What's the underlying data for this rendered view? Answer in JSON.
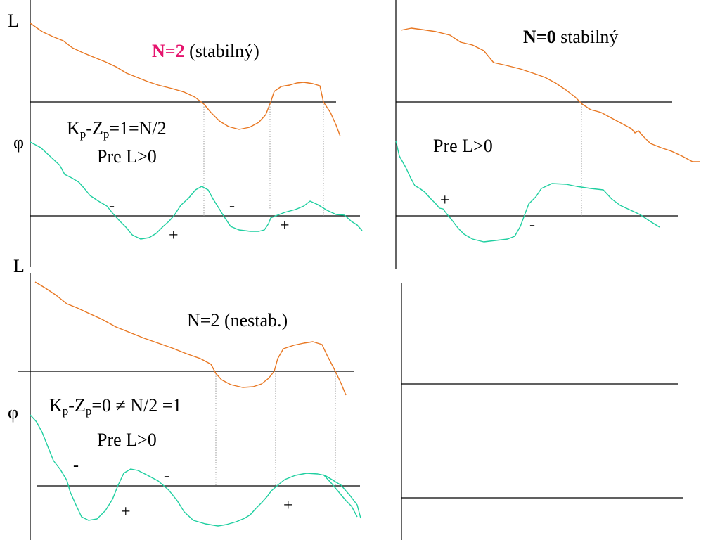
{
  "colors": {
    "magnitude": "#e87722",
    "phase": "#1fcfa0",
    "axis": "#000000",
    "highlight": "#e6146e"
  },
  "axis_labels": {
    "magnitude": "L",
    "phase": "φ"
  },
  "panel1": {
    "title_strong": "N=2",
    "title_rest": " (stabilný)",
    "eq": {
      "k": "K",
      "p1": "p",
      "dash_z": "-Z",
      "p2": "p",
      "tail": "=1=N/2"
    },
    "condition": "Pre L>0",
    "signs": [
      "-",
      "+",
      "-",
      "+"
    ]
  },
  "panel2": {
    "title_strong": "N=0",
    "title_rest": " stabilný",
    "condition": "Pre L>0",
    "signs": [
      "+",
      "-"
    ]
  },
  "panel3": {
    "title": "N=2 (nestab.)",
    "eq": {
      "k": "K",
      "p1": "p",
      "dash_z": "-Z",
      "p2": "p",
      "tail": "=0 ≠ N/2 =1"
    },
    "condition": "Pre L>0",
    "signs": [
      "-",
      "+",
      "-",
      "+"
    ]
  }
}
